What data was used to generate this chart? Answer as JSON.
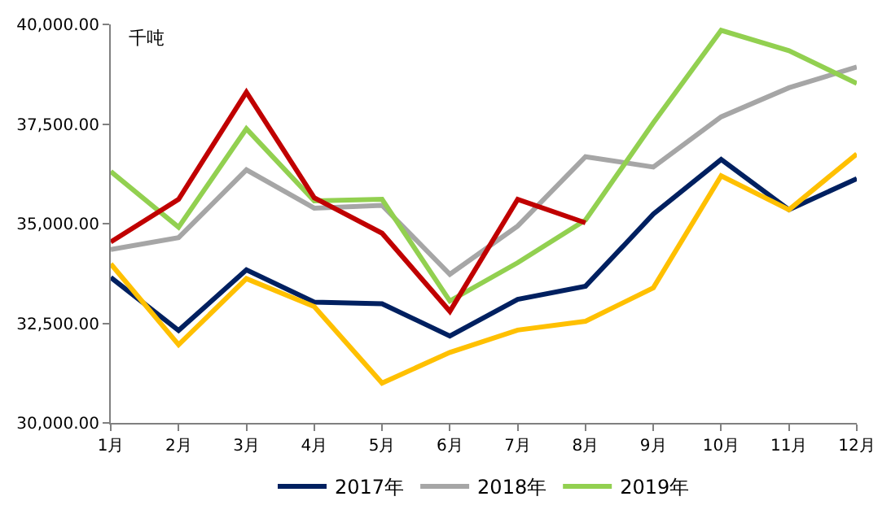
{
  "chart_data": {
    "type": "line",
    "ylabel": "千吨",
    "categories": [
      "1月",
      "2月",
      "3月",
      "4月",
      "5月",
      "6月",
      "7月",
      "8月",
      "9月",
      "10月",
      "11月",
      "12月"
    ],
    "series": [
      {
        "name": "2017年",
        "color": "#002060",
        "values": [
          33650,
          32320,
          33840,
          33030,
          32990,
          32180,
          33100,
          33430,
          35240,
          36610,
          35350,
          36130
        ]
      },
      {
        "name": "2018年",
        "color": "#a6a6a6",
        "values": [
          34350,
          34650,
          36350,
          35390,
          35460,
          33730,
          34940,
          36680,
          36420,
          37680,
          38410,
          38930
        ]
      },
      {
        "name": "2019年",
        "color": "#92d050",
        "values": [
          36310,
          34910,
          37380,
          35570,
          35610,
          33060,
          34020,
          35090,
          37530,
          39850,
          39340,
          38520
        ]
      },
      {
        "color": "#c00000",
        "values": [
          34540,
          35610,
          38300,
          35650,
          34760,
          32800,
          35610,
          35020,
          null,
          null,
          null,
          null
        ]
      },
      {
        "color": "#ffc000",
        "values": [
          33990,
          31960,
          33620,
          32920,
          31000,
          31770,
          32330,
          32550,
          33390,
          36200,
          35350,
          36750
        ]
      }
    ],
    "ylim": [
      30000,
      40000
    ],
    "yticks": [
      {
        "value": 30000,
        "label": "30,000.00"
      },
      {
        "value": 32500,
        "label": "32,500.00"
      },
      {
        "value": 35000,
        "label": "35,000.00"
      },
      {
        "value": 37500,
        "label": "37,500.00"
      },
      {
        "value": 40000,
        "label": "40,000.00"
      }
    ],
    "legend": "bottom",
    "marker": "none",
    "line_style": "solid"
  }
}
